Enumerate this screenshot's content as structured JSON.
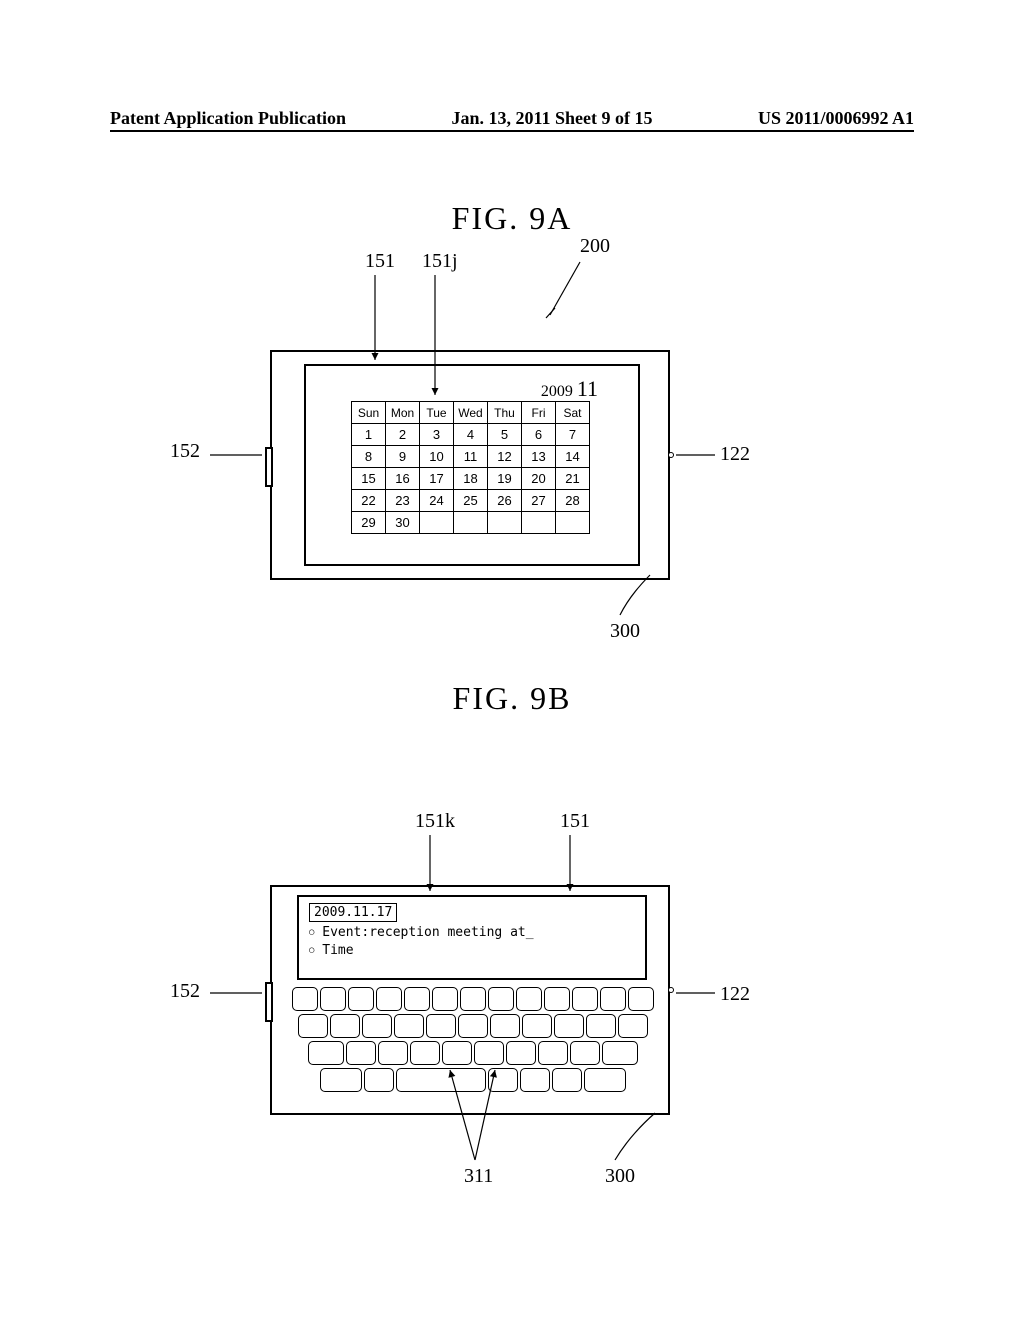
{
  "header": {
    "left": "Patent Application Publication",
    "center": "Jan. 13, 2011  Sheet 9 of 15",
    "right": "US 2011/0006992 A1"
  },
  "figA": {
    "title": "FIG.  9A",
    "year": "2009",
    "month": "11",
    "days": [
      "Sun",
      "Mon",
      "Tue",
      "Wed",
      "Thu",
      "Fri",
      "Sat"
    ],
    "weeks": [
      [
        "1",
        "2",
        "3",
        "4",
        "5",
        "6",
        "7"
      ],
      [
        "8",
        "9",
        "10",
        "11",
        "12",
        "13",
        "14"
      ],
      [
        "15",
        "16",
        "17",
        "18",
        "19",
        "20",
        "21"
      ],
      [
        "22",
        "23",
        "24",
        "25",
        "26",
        "27",
        "28"
      ],
      [
        "29",
        "30",
        "",
        "",
        "",
        "",
        ""
      ]
    ],
    "refs": {
      "r151": "151",
      "r151j": "151j",
      "r200": "200",
      "r152": "152",
      "r122": "122",
      "r300": "300"
    }
  },
  "figB": {
    "title": "FIG.  9B",
    "date": "2009.11.17",
    "event_line": "Event:reception meeting at_",
    "time_line": "Time",
    "refs": {
      "r151k": "151k",
      "r151": "151",
      "r152": "152",
      "r122": "122",
      "r311": "311",
      "r300": "300"
    }
  }
}
